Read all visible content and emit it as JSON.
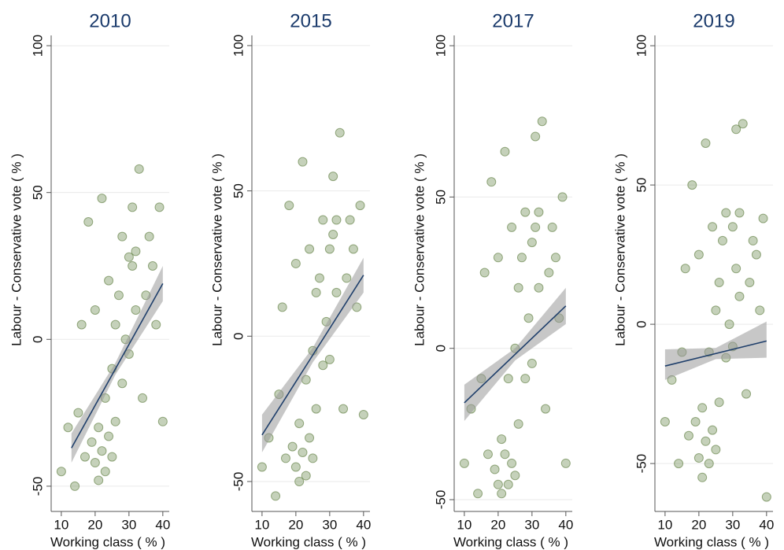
{
  "chart_data": [
    {
      "type": "scatter",
      "title": "2010",
      "x_label": "Working class ( % )",
      "y_label": "Labour - Conservative vote ( % )",
      "color": "#5a7a3a",
      "fit_color": "#1f3f6b",
      "grid": true,
      "xlim": [
        7,
        41.9
      ],
      "ylim": [
        -58.6,
        103.5
      ],
      "xticks": [
        10,
        20,
        30,
        40
      ],
      "yticks": [
        -50,
        0,
        50,
        100
      ],
      "x": [
        10,
        12,
        14,
        15,
        16,
        17,
        18,
        19,
        20,
        20,
        21,
        21,
        22,
        22,
        23,
        23,
        24,
        24,
        25,
        25,
        26,
        26,
        27,
        28,
        28,
        29,
        30,
        30,
        31,
        31,
        32,
        32,
        33,
        34,
        35,
        36,
        37,
        38,
        39,
        40
      ],
      "y": [
        -45,
        -30,
        -50,
        -25,
        5,
        -40,
        40,
        -35,
        -42,
        10,
        -30,
        -48,
        48,
        -38,
        -20,
        -45,
        20,
        -33,
        -10,
        -40,
        5,
        -28,
        15,
        -15,
        35,
        0,
        28,
        -5,
        25,
        45,
        30,
        10,
        58,
        -20,
        15,
        35,
        25,
        5,
        45,
        -28
      ],
      "fit": {
        "x": [
          13,
          40
        ],
        "y": [
          -37,
          19
        ]
      },
      "band": {
        "x": [
          13,
          26,
          40
        ],
        "lower": [
          -42,
          -12,
          13
        ],
        "upper": [
          -32,
          -8,
          25
        ]
      }
    },
    {
      "type": "scatter",
      "title": "2015",
      "x_label": "Working class ( % )",
      "y_label": "Labour - Conservative vote ( % )",
      "color": "#5a7a3a",
      "fit_color": "#1f3f6b",
      "grid": true,
      "xlim": [
        7,
        41.9
      ],
      "ylim": [
        -60.3,
        103.5
      ],
      "xticks": [
        10,
        20,
        30,
        40
      ],
      "yticks": [
        -50,
        0,
        50,
        100
      ],
      "x": [
        10,
        12,
        14,
        15,
        16,
        17,
        18,
        19,
        20,
        20,
        21,
        21,
        22,
        22,
        23,
        23,
        24,
        24,
        25,
        25,
        26,
        26,
        27,
        28,
        28,
        29,
        30,
        30,
        31,
        31,
        32,
        32,
        33,
        34,
        35,
        36,
        37,
        38,
        39,
        40
      ],
      "y": [
        -45,
        -35,
        -55,
        -20,
        10,
        -42,
        45,
        -38,
        -45,
        25,
        -30,
        -50,
        60,
        -40,
        -15,
        -48,
        30,
        -35,
        -5,
        -42,
        15,
        -25,
        20,
        -10,
        40,
        5,
        30,
        -8,
        35,
        55,
        40,
        15,
        70,
        -25,
        20,
        40,
        30,
        10,
        45,
        -27
      ],
      "fit": {
        "x": [
          10,
          40
        ],
        "y": [
          -34,
          21
        ]
      },
      "band": {
        "x": [
          10,
          25,
          40
        ],
        "lower": [
          -40,
          -9,
          15
        ],
        "upper": [
          -27,
          -4,
          27
        ]
      }
    },
    {
      "type": "scatter",
      "title": "2017",
      "x_label": "Working class ( % )",
      "y_label": "Labour - Conservative vote ( % )",
      "color": "#5a7a3a",
      "fit_color": "#1f3f6b",
      "grid": true,
      "xlim": [
        7,
        41.9
      ],
      "ylim": [
        -53.9,
        103.4
      ],
      "xticks": [
        10,
        20,
        30,
        40
      ],
      "yticks": [
        -50,
        0,
        50,
        100
      ],
      "x": [
        10,
        12,
        14,
        15,
        16,
        17,
        18,
        19,
        20,
        20,
        21,
        21,
        22,
        22,
        23,
        23,
        24,
        24,
        25,
        25,
        26,
        26,
        27,
        28,
        28,
        29,
        30,
        30,
        31,
        31,
        32,
        32,
        33,
        34,
        35,
        36,
        37,
        38,
        39,
        40
      ],
      "y": [
        -38,
        -20,
        -48,
        -10,
        25,
        -35,
        55,
        -40,
        -45,
        30,
        -30,
        -48,
        65,
        -35,
        -10,
        -45,
        40,
        -38,
        0,
        -42,
        20,
        -25,
        30,
        -10,
        45,
        10,
        35,
        -5,
        40,
        70,
        45,
        20,
        75,
        -20,
        25,
        40,
        30,
        10,
        50,
        -38
      ],
      "fit": {
        "x": [
          10,
          40
        ],
        "y": [
          -18,
          14
        ]
      },
      "band": {
        "x": [
          10,
          25,
          40
        ],
        "lower": [
          -24,
          -4,
          8
        ],
        "upper": [
          -12,
          0,
          20
        ]
      }
    },
    {
      "type": "scatter",
      "title": "2019",
      "x_label": "Working class ( % )",
      "y_label": "Labour - Conservative vote ( % )",
      "color": "#5a7a3a",
      "fit_color": "#1f3f6b",
      "grid": true,
      "xlim": [
        7,
        41.9
      ],
      "ylim": [
        -67.2,
        103.7
      ],
      "xticks": [
        10,
        20,
        30,
        40
      ],
      "yticks": [
        -50,
        0,
        50,
        100
      ],
      "x": [
        10,
        12,
        14,
        15,
        16,
        17,
        18,
        19,
        20,
        20,
        21,
        21,
        22,
        22,
        23,
        23,
        24,
        24,
        25,
        25,
        26,
        26,
        27,
        28,
        28,
        29,
        30,
        30,
        31,
        31,
        32,
        32,
        33,
        34,
        35,
        36,
        37,
        38,
        39,
        40
      ],
      "y": [
        -35,
        -20,
        -50,
        -10,
        20,
        -40,
        50,
        -35,
        -48,
        25,
        -30,
        -55,
        65,
        -42,
        -10,
        -50,
        35,
        -38,
        5,
        -45,
        15,
        -28,
        30,
        -12,
        40,
        0,
        35,
        -8,
        20,
        70,
        40,
        10,
        72,
        -25,
        15,
        30,
        25,
        5,
        38,
        -62
      ],
      "fit": {
        "x": [
          10,
          40
        ],
        "y": [
          -15,
          -6
        ]
      },
      "band": {
        "x": [
          10,
          25,
          40
        ],
        "lower": [
          -20,
          -12.5,
          -12
        ],
        "upper": [
          -9,
          -8.5,
          1
        ]
      }
    }
  ]
}
